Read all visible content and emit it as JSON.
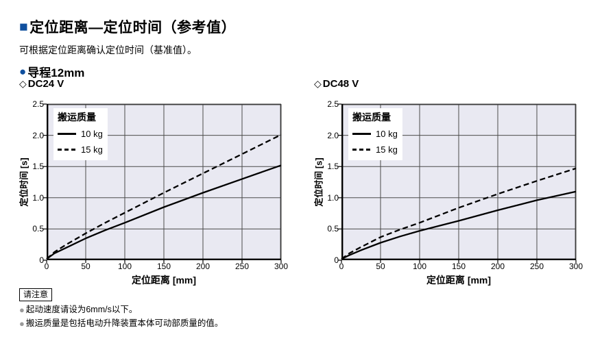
{
  "page": {
    "title": "定位距离―定位时间（参考值）",
    "subtitle": "可根据定位距离确认定位时间（基准值）。",
    "lead_label": "导程12mm"
  },
  "icons": {
    "title_square": "■",
    "lead_circle": "●",
    "diamond": "◇",
    "note_bullet": "●"
  },
  "colors": {
    "accent_blue": "#0f4f9e",
    "plot_bg": "#e9e9f2",
    "grid": "#4a4a4a",
    "frame": "#3a3a3a",
    "line": "#000000",
    "note_bullet_gray": "#9a9a9a"
  },
  "notes": {
    "box_label": "请注意",
    "items": [
      "起动速度请设为6mm/s以下。",
      "搬运质量是包括电动升降装置本体可动部质量的值。"
    ]
  },
  "chart_data": [
    {
      "type": "line",
      "title": "DC24 V",
      "xlabel": "定位距离 [mm]",
      "ylabel": "定位时间 [s]",
      "xlim": [
        0,
        300
      ],
      "ylim": [
        0,
        2.5
      ],
      "xticks": [
        0,
        50,
        100,
        150,
        200,
        250,
        300
      ],
      "xtick_labels": [
        "0",
        "50",
        "100",
        "150",
        "200",
        "250",
        "300"
      ],
      "yticks": [
        0,
        0.5,
        1.0,
        1.5,
        2.0,
        2.5
      ],
      "ytick_labels": [
        "0",
        "0.5",
        "1.0",
        "1.5",
        "2.0",
        "2.5"
      ],
      "grid": true,
      "legend_title": "搬运质量",
      "legend_position": "top-left",
      "series": [
        {
          "name": "10 kg",
          "style": "solid",
          "x": [
            0,
            10,
            25,
            50,
            75,
            100,
            150,
            200,
            250,
            300
          ],
          "y": [
            0.02,
            0.11,
            0.2,
            0.35,
            0.48,
            0.6,
            0.85,
            1.08,
            1.3,
            1.52
          ]
        },
        {
          "name": "15 kg",
          "style": "dashed",
          "x": [
            0,
            10,
            25,
            50,
            75,
            100,
            150,
            200,
            250,
            300
          ],
          "y": [
            0.02,
            0.13,
            0.25,
            0.43,
            0.6,
            0.76,
            1.08,
            1.39,
            1.7,
            2.01
          ]
        }
      ]
    },
    {
      "type": "line",
      "title": "DC48 V",
      "xlabel": "定位距离 [mm]",
      "ylabel": "定位时间 [s]",
      "xlim": [
        0,
        300
      ],
      "ylim": [
        0,
        2.5
      ],
      "xticks": [
        0,
        50,
        100,
        150,
        200,
        250,
        300
      ],
      "xtick_labels": [
        "0",
        "50",
        "100",
        "150",
        "200",
        "250",
        "300"
      ],
      "yticks": [
        0,
        0.5,
        1.0,
        1.5,
        2.0,
        2.5
      ],
      "ytick_labels": [
        "0",
        "0.5",
        "1.0",
        "1.5",
        "2.0",
        "2.5"
      ],
      "grid": true,
      "legend_title": "搬运质量",
      "legend_position": "top-left",
      "series": [
        {
          "name": "10 kg",
          "style": "solid",
          "x": [
            0,
            10,
            25,
            50,
            75,
            100,
            150,
            200,
            250,
            300
          ],
          "y": [
            0.02,
            0.08,
            0.16,
            0.28,
            0.38,
            0.47,
            0.63,
            0.8,
            0.96,
            1.1
          ]
        },
        {
          "name": "15 kg",
          "style": "dashed",
          "x": [
            0,
            10,
            25,
            50,
            75,
            100,
            150,
            200,
            250,
            300
          ],
          "y": [
            0.02,
            0.11,
            0.21,
            0.37,
            0.49,
            0.6,
            0.84,
            1.06,
            1.27,
            1.47
          ]
        }
      ]
    }
  ]
}
